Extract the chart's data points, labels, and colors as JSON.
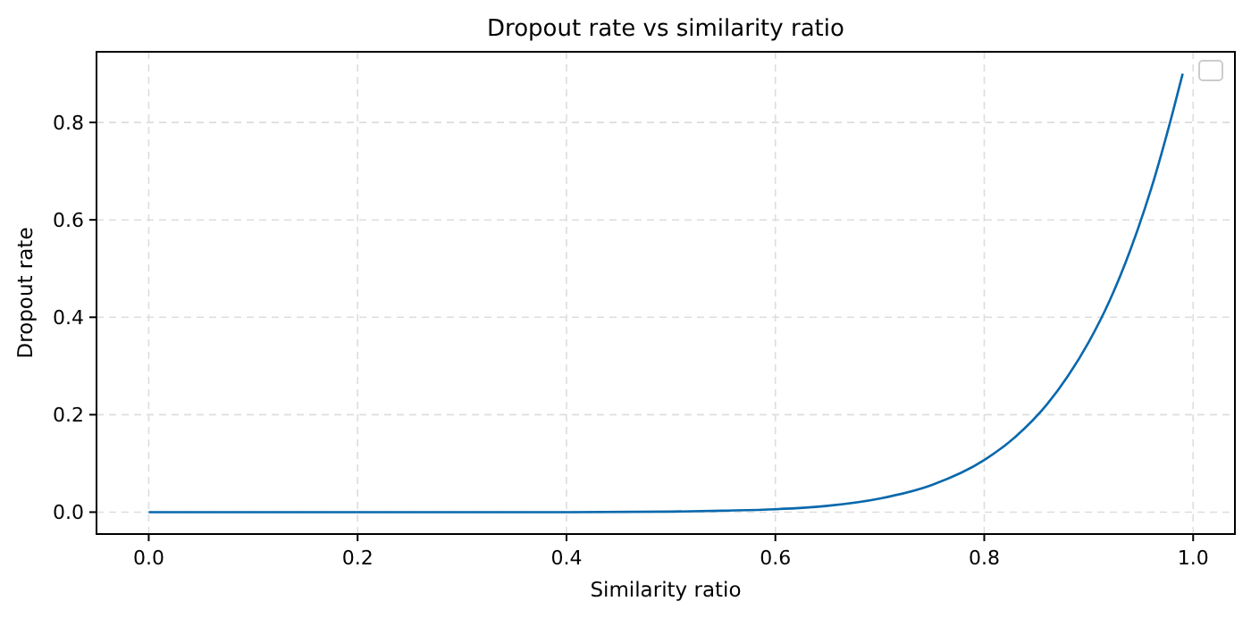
{
  "chart_data": {
    "type": "line",
    "title": "Dropout rate vs similarity ratio",
    "xlabel": "Similarity ratio",
    "ylabel": "Dropout rate",
    "x": [
      0,
      0.1,
      0.2,
      0.3,
      0.4,
      0.5,
      0.55,
      0.6,
      0.65,
      0.7,
      0.75,
      0.8,
      0.83,
      0.86,
      0.88,
      0.9,
      0.92,
      0.94,
      0.96,
      0.98,
      0.99
    ],
    "series": [
      {
        "color": "#0868ac",
        "values": [
          0,
          0,
          0,
          0,
          0,
          0.001,
          0.003,
          0.006,
          0.013,
          0.028,
          0.056,
          0.107,
          0.155,
          0.221,
          0.279,
          0.349,
          0.434,
          0.539,
          0.665,
          0.817,
          0.9
        ]
      }
    ],
    "xlim": [
      -0.05,
      1.04
    ],
    "ylim": [
      -0.045,
      0.945
    ],
    "xticks": [
      {
        "value": 0,
        "label": "0.0"
      },
      0.2,
      0.4,
      0.6,
      0.8,
      {
        "value": 1,
        "label": "1.0"
      }
    ],
    "yticks": [
      {
        "value": 0,
        "label": "0.0"
      },
      0.2,
      0.4,
      0.6,
      0.8
    ],
    "grid": true,
    "line_style": "solid"
  }
}
